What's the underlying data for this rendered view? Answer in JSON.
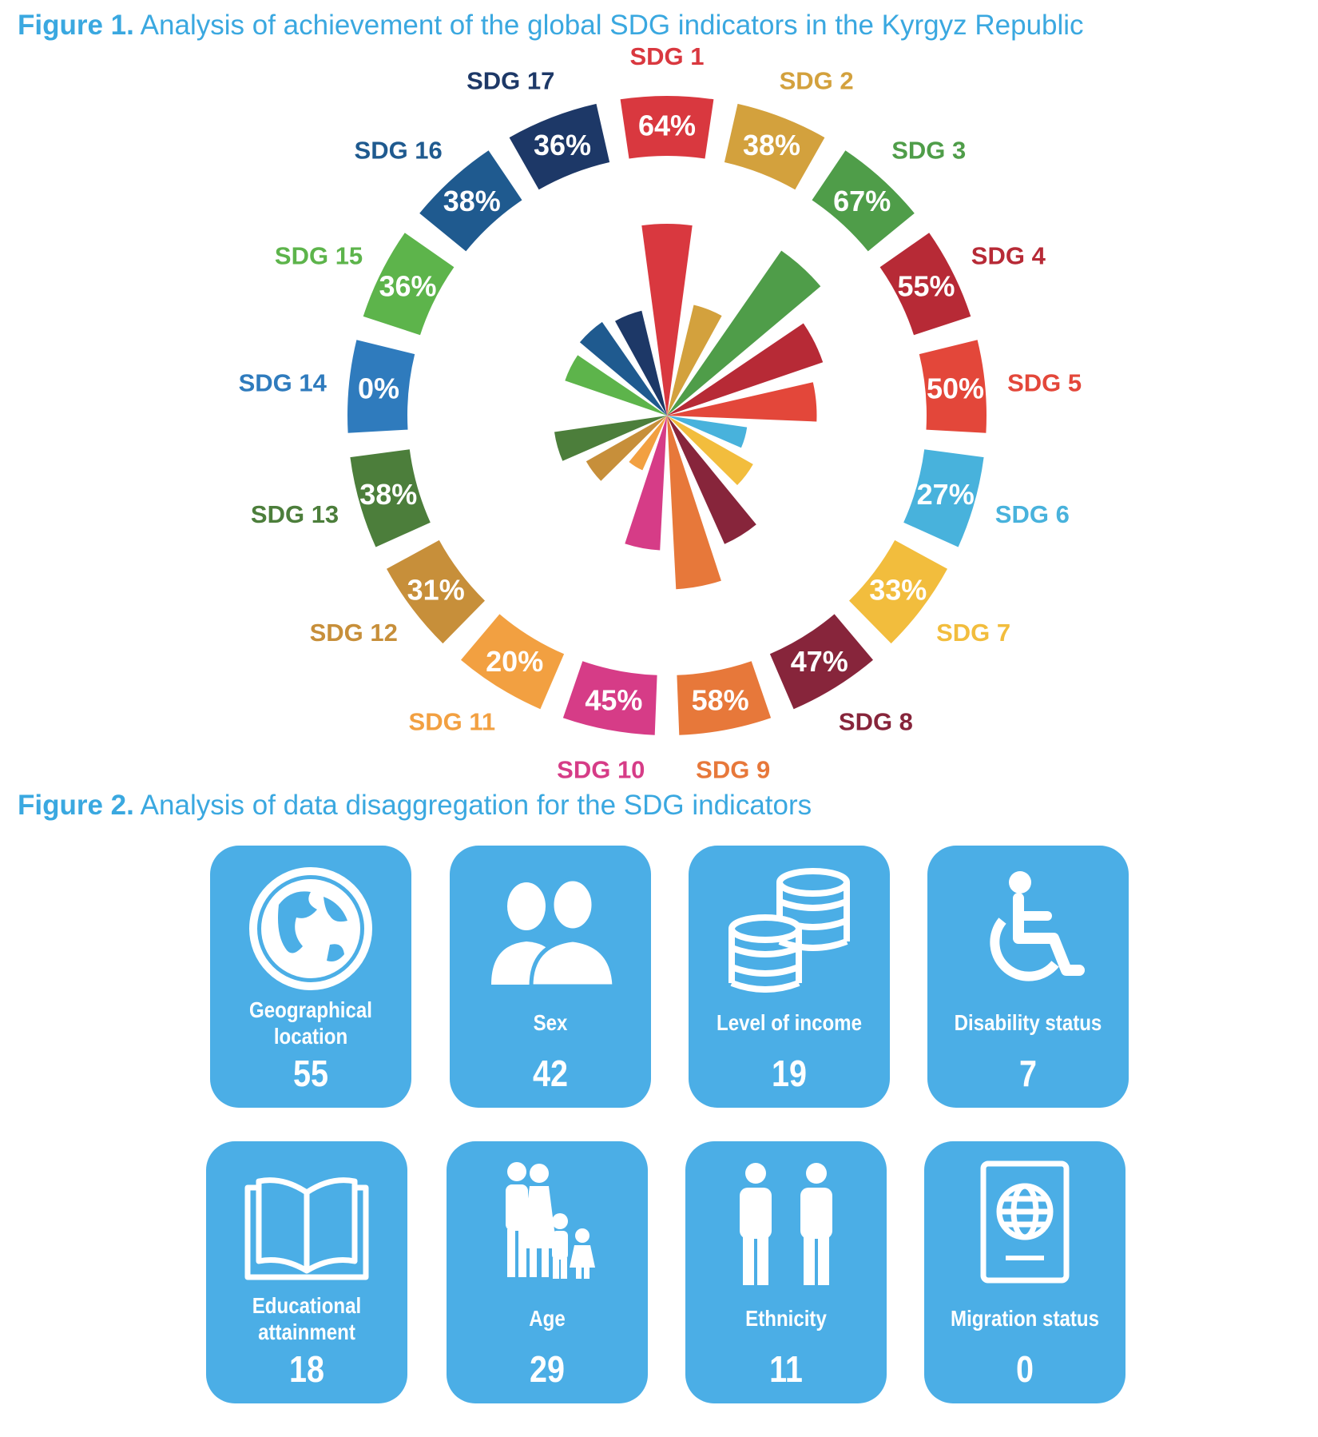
{
  "figure1": {
    "title_prefix": "Figure 1.",
    "title_text": "Analysis of achievement of the global SDG indicators in the Kyrgyz Republic"
  },
  "figure2": {
    "title_prefix": "Figure 2.",
    "title_text": "Analysis of data disaggregation for the SDG indicators"
  },
  "chart_data": [
    {
      "type": "polar-bar",
      "title": "Analysis of achievement of the global SDG indicators in the Kyrgyz Republic",
      "categories": [
        "SDG 1",
        "SDG 2",
        "SDG 3",
        "SDG 4",
        "SDG 5",
        "SDG 6",
        "SDG 7",
        "SDG 8",
        "SDG 9",
        "SDG 10",
        "SDG 11",
        "SDG 12",
        "SDG 13",
        "SDG 14",
        "SDG 15",
        "SDG 16",
        "SDG 17"
      ],
      "values": [
        64,
        38,
        67,
        55,
        50,
        27,
        33,
        47,
        58,
        45,
        20,
        31,
        38,
        0,
        36,
        38,
        36
      ],
      "value_labels": [
        "64%",
        "38%",
        "67%",
        "55%",
        "50%",
        "27%",
        "33%",
        "47%",
        "58%",
        "45%",
        "20%",
        "31%",
        "38%",
        "0%",
        "36%",
        "38%",
        "36%"
      ],
      "unit": "%",
      "colors": [
        "#d9383f",
        "#d3a13d",
        "#4f9d49",
        "#b72a36",
        "#e3473a",
        "#48b2dc",
        "#f2bd3d",
        "#87253b",
        "#e7783a",
        "#d63c87",
        "#f2a041",
        "#c78f3a",
        "#4c7e3b",
        "#2f7bbd",
        "#5db44b",
        "#1f5a8f",
        "#1d3867"
      ]
    },
    {
      "type": "table",
      "title": "Analysis of data disaggregation for the SDG indicators",
      "categories": [
        "Geographical location",
        "Sex",
        "Level of income",
        "Disability status",
        "Educational attainment",
        "Age",
        "Ethnicity",
        "Migration status"
      ],
      "values": [
        55,
        42,
        19,
        7,
        18,
        29,
        11,
        0
      ]
    }
  ],
  "tiles": [
    {
      "label": "Geographical location",
      "count": "55",
      "icon": "globe-icon"
    },
    {
      "label": "Sex",
      "count": "42",
      "icon": "people-icon"
    },
    {
      "label": "Level of income",
      "count": "19",
      "icon": "coins-icon"
    },
    {
      "label": "Disability status",
      "count": "7",
      "icon": "wheelchair-icon"
    },
    {
      "label": "Educational attainment",
      "count": "18",
      "icon": "book-icon"
    },
    {
      "label": "Age",
      "count": "29",
      "icon": "family-icon"
    },
    {
      "label": "Ethnicity",
      "count": "11",
      "icon": "two-persons-icon"
    },
    {
      "label": "Migration status",
      "count": "0",
      "icon": "passport-icon"
    }
  ],
  "colors": {
    "title": "#3aa8e0",
    "tile": "#4baee6"
  }
}
